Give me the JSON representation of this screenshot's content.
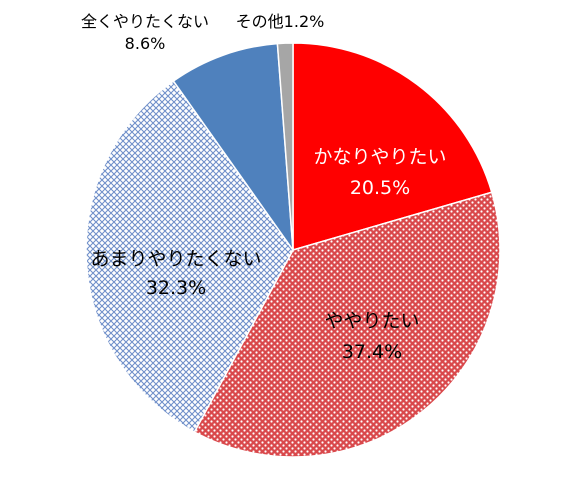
{
  "chart_data": {
    "type": "pie",
    "title": "",
    "unit": "%",
    "slices": [
      {
        "label": "かなりやりたい",
        "value": 20.5,
        "value_text": "20.5%",
        "color": "#ff0000",
        "pattern": "solid",
        "text_color": "#ffffff"
      },
      {
        "label": "ややりたい",
        "value": 37.4,
        "value_text": "37.4%",
        "color": "#d9484b",
        "pattern": "dots",
        "text_color": "#000000"
      },
      {
        "label": "あまりやりたくない",
        "value": 32.3,
        "value_text": "32.3%",
        "color": "#8eaadb",
        "pattern": "lattice",
        "text_color": "#000000"
      },
      {
        "label": "全くやりたくない",
        "value": 8.6,
        "value_text": "8.6%",
        "color": "#4f81bd",
        "pattern": "solid",
        "text_color": "#000000"
      },
      {
        "label": "その他",
        "value": 1.2,
        "value_text": "1.2%",
        "color": "#a6a6a6",
        "pattern": "solid",
        "text_color": "#000000"
      }
    ],
    "start_angle": "12 o'clock",
    "direction": "clockwise",
    "legend": "none",
    "data_labels": "category and percentage"
  }
}
